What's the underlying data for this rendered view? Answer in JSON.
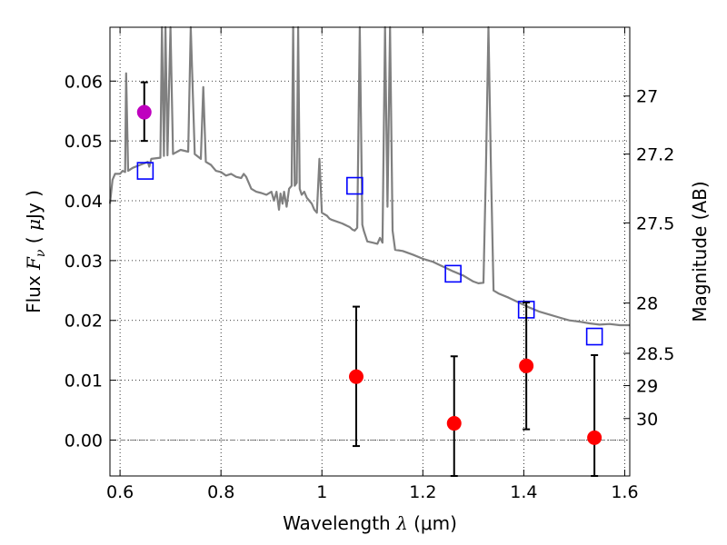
{
  "chart_data": {
    "type": "scatter",
    "xlabel": "Wavelength  λ (μm)",
    "xlabel_parts": {
      "pre": "Wavelength  ",
      "lambda": "λ",
      "unit": " (μm)"
    },
    "ylabel": "Flux  Fν  ( μJy )",
    "ylabel_parts": {
      "pre": "Flux  ",
      "F": "F",
      "sub": "ν",
      "unit_open": "  ( ",
      "mu": "μ",
      "unit_rest": "Jy )"
    },
    "y2label": "Magnitude (AB)",
    "xlim": [
      0.58,
      1.61
    ],
    "ylim": [
      -0.006,
      0.069
    ],
    "grid": true,
    "x_ticks": [
      {
        "value": 0.6,
        "label": "0.6"
      },
      {
        "value": 0.8,
        "label": "0.8"
      },
      {
        "value": 1.0,
        "label": "1"
      },
      {
        "value": 1.2,
        "label": "1.2"
      },
      {
        "value": 1.4,
        "label": "1.4"
      },
      {
        "value": 1.6,
        "label": "1.6"
      }
    ],
    "y_ticks": [
      {
        "value": 0.0,
        "label": "0.00"
      },
      {
        "value": 0.01,
        "label": "0.01"
      },
      {
        "value": 0.02,
        "label": "0.02"
      },
      {
        "value": 0.03,
        "label": "0.03"
      },
      {
        "value": 0.04,
        "label": "0.04"
      },
      {
        "value": 0.05,
        "label": "0.05"
      },
      {
        "value": 0.06,
        "label": "0.06"
      }
    ],
    "y2_ticks": [
      {
        "flux": 0.0575,
        "label": "27"
      },
      {
        "flux": 0.0478,
        "label": "27.2"
      },
      {
        "flux": 0.0363,
        "label": "27.5"
      },
      {
        "flux": 0.0229,
        "label": "28"
      },
      {
        "flux": 0.0145,
        "label": "28.5"
      },
      {
        "flux": 0.0091,
        "label": "29"
      },
      {
        "flux": 0.0036,
        "label": "30"
      }
    ],
    "series": [
      {
        "name": "model_spectrum",
        "kind": "line",
        "color": "#808080",
        "points": [
          [
            0.58,
            0.0395
          ],
          [
            0.585,
            0.0435
          ],
          [
            0.59,
            0.0445
          ],
          [
            0.6,
            0.0445
          ],
          [
            0.605,
            0.045
          ],
          [
            0.61,
            0.0448
          ],
          [
            0.612,
            0.0613
          ],
          [
            0.616,
            0.045
          ],
          [
            0.625,
            0.0455
          ],
          [
            0.64,
            0.046
          ],
          [
            0.655,
            0.0465
          ],
          [
            0.658,
            0.0457
          ],
          [
            0.662,
            0.047
          ],
          [
            0.68,
            0.0472
          ],
          [
            0.683,
            0.069
          ],
          [
            0.687,
            0.0475
          ],
          [
            0.69,
            0.069
          ],
          [
            0.694,
            0.0476
          ],
          [
            0.7,
            0.069
          ],
          [
            0.705,
            0.0478
          ],
          [
            0.72,
            0.0485
          ],
          [
            0.735,
            0.0482
          ],
          [
            0.74,
            0.069
          ],
          [
            0.748,
            0.0478
          ],
          [
            0.76,
            0.047
          ],
          [
            0.765,
            0.059
          ],
          [
            0.77,
            0.0465
          ],
          [
            0.78,
            0.046
          ],
          [
            0.79,
            0.045
          ],
          [
            0.8,
            0.0448
          ],
          [
            0.81,
            0.0442
          ],
          [
            0.82,
            0.0445
          ],
          [
            0.83,
            0.044
          ],
          [
            0.84,
            0.0438
          ],
          [
            0.845,
            0.0445
          ],
          [
            0.85,
            0.044
          ],
          [
            0.86,
            0.042
          ],
          [
            0.87,
            0.0415
          ],
          [
            0.88,
            0.0413
          ],
          [
            0.89,
            0.041
          ],
          [
            0.9,
            0.0415
          ],
          [
            0.905,
            0.04
          ],
          [
            0.91,
            0.0415
          ],
          [
            0.915,
            0.0385
          ],
          [
            0.918,
            0.0412
          ],
          [
            0.922,
            0.0395
          ],
          [
            0.925,
            0.0415
          ],
          [
            0.93,
            0.039
          ],
          [
            0.935,
            0.042
          ],
          [
            0.94,
            0.0425
          ],
          [
            0.943,
            0.069
          ],
          [
            0.946,
            0.0425
          ],
          [
            0.95,
            0.043
          ],
          [
            0.953,
            0.069
          ],
          [
            0.956,
            0.042
          ],
          [
            0.96,
            0.041
          ],
          [
            0.965,
            0.0415
          ],
          [
            0.97,
            0.0405
          ],
          [
            0.975,
            0.04
          ],
          [
            0.98,
            0.0395
          ],
          [
            0.985,
            0.0385
          ],
          [
            0.99,
            0.038
          ],
          [
            0.995,
            0.047
          ],
          [
            1.0,
            0.038
          ],
          [
            1.01,
            0.0375
          ],
          [
            1.015,
            0.037
          ],
          [
            1.02,
            0.0368
          ],
          [
            1.04,
            0.0362
          ],
          [
            1.055,
            0.0356
          ],
          [
            1.06,
            0.0352
          ],
          [
            1.065,
            0.035
          ],
          [
            1.07,
            0.0355
          ],
          [
            1.075,
            0.069
          ],
          [
            1.08,
            0.036
          ],
          [
            1.083,
            0.035
          ],
          [
            1.09,
            0.0332
          ],
          [
            1.1,
            0.033
          ],
          [
            1.11,
            0.0328
          ],
          [
            1.115,
            0.0338
          ],
          [
            1.12,
            0.033
          ],
          [
            1.125,
            0.069
          ],
          [
            1.13,
            0.039
          ],
          [
            1.135,
            0.069
          ],
          [
            1.14,
            0.035
          ],
          [
            1.145,
            0.0318
          ],
          [
            1.16,
            0.0316
          ],
          [
            1.18,
            0.031
          ],
          [
            1.2,
            0.0303
          ],
          [
            1.22,
            0.0298
          ],
          [
            1.24,
            0.029
          ],
          [
            1.26,
            0.0282
          ],
          [
            1.28,
            0.0275
          ],
          [
            1.3,
            0.0265
          ],
          [
            1.31,
            0.0262
          ],
          [
            1.32,
            0.0263
          ],
          [
            1.325,
            0.045
          ],
          [
            1.33,
            0.069
          ],
          [
            1.335,
            0.045
          ],
          [
            1.34,
            0.025
          ],
          [
            1.35,
            0.0245
          ],
          [
            1.37,
            0.0238
          ],
          [
            1.39,
            0.023
          ],
          [
            1.41,
            0.0222
          ],
          [
            1.43,
            0.0215
          ],
          [
            1.45,
            0.021
          ],
          [
            1.47,
            0.0205
          ],
          [
            1.49,
            0.02
          ],
          [
            1.51,
            0.0198
          ],
          [
            1.53,
            0.0195
          ],
          [
            1.55,
            0.0193
          ],
          [
            1.57,
            0.0194
          ],
          [
            1.59,
            0.0192
          ],
          [
            1.61,
            0.0192
          ]
        ]
      },
      {
        "name": "model_band_fluxes",
        "kind": "square",
        "color": "#0000ff",
        "points": [
          [
            0.65,
            0.045
          ],
          [
            1.065,
            0.0425
          ],
          [
            1.26,
            0.0278
          ],
          [
            1.405,
            0.0218
          ],
          [
            1.54,
            0.0173
          ]
        ]
      },
      {
        "name": "detection",
        "kind": "point",
        "color": "#bf00bf",
        "points": [
          {
            "x": 0.648,
            "y": 0.0548,
            "yerr_low": 0.05,
            "yerr_high": 0.0598
          }
        ]
      },
      {
        "name": "observed",
        "kind": "point",
        "color": "#ff0000",
        "points": [
          {
            "x": 1.068,
            "y": 0.0106,
            "yerr_low": -0.001,
            "yerr_high": 0.0223
          },
          {
            "x": 1.262,
            "y": 0.0028,
            "yerr_low": -0.006,
            "yerr_high": 0.014
          },
          {
            "x": 1.405,
            "y": 0.0124,
            "yerr_low": 0.0018,
            "yerr_high": 0.023
          },
          {
            "x": 1.54,
            "y": 0.0004,
            "yerr_low": -0.006,
            "yerr_high": 0.0142
          }
        ]
      }
    ]
  }
}
